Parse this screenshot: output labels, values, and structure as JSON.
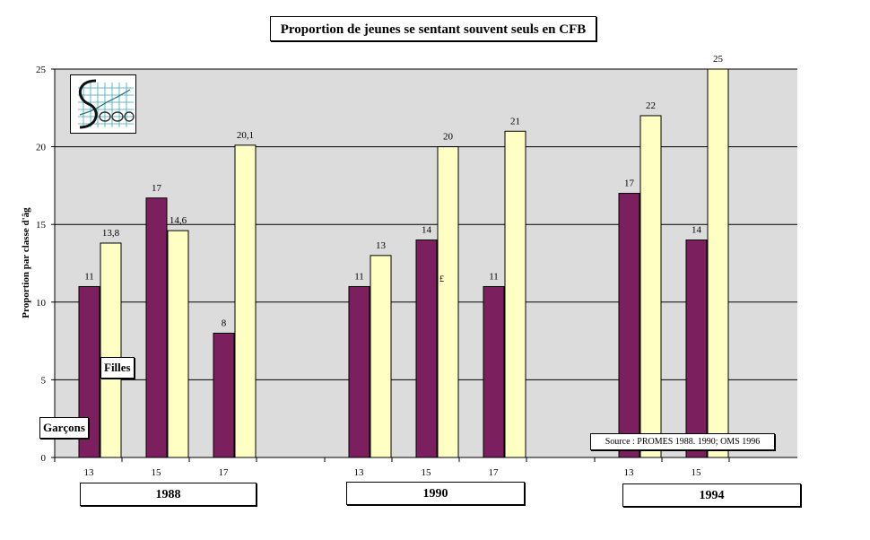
{
  "chart_data": {
    "type": "bar",
    "title": "Proportion de jeunes se sentant souvent seuls en CFB",
    "ylabel": "Proportion par classe d'âg",
    "ylim": [
      0,
      25
    ],
    "yticks": [
      "0",
      "5",
      "10",
      "15",
      "20",
      "25"
    ],
    "grid": true,
    "groups": [
      {
        "year": "1988",
        "ages": [
          {
            "age": "13",
            "garcons": 11,
            "filles": 13.8,
            "garcons_label": "11",
            "filles_label": "13,8"
          },
          {
            "age": "15",
            "garcons": 16.7,
            "filles": 14.6,
            "garcons_label": "17",
            "filles_label": "14,6"
          },
          {
            "age": "17",
            "garcons": 8,
            "filles": 20.1,
            "garcons_label": "8",
            "filles_label": "20,1"
          }
        ]
      },
      {
        "year": "1990",
        "ages": [
          {
            "age": "13",
            "garcons": 11,
            "filles": 13,
            "garcons_label": "11",
            "filles_label": "13"
          },
          {
            "age": "15",
            "garcons": 14,
            "filles": 20,
            "garcons_label": "14",
            "filles_label": "20"
          },
          {
            "age": "17",
            "garcons": 11,
            "filles": 21,
            "garcons_label": "11",
            "filles_label": "21"
          }
        ]
      },
      {
        "year": "1994",
        "ages": [
          {
            "age": "13",
            "garcons": 17,
            "filles": 22,
            "garcons_label": "17",
            "filles_label": "22"
          },
          {
            "age": "15",
            "garcons": 14,
            "filles": 25,
            "garcons_label": "14",
            "filles_label": "25"
          }
        ]
      }
    ],
    "series": [
      {
        "name": "Garçons",
        "color": "#7b1f5e"
      },
      {
        "name": "Filles",
        "color": "#ffffc4"
      }
    ],
    "source": "Source : PROMES 1988. 1990;  OMS 1996",
    "stray_mark": "£",
    "plot_background": "#dcdcdc"
  }
}
